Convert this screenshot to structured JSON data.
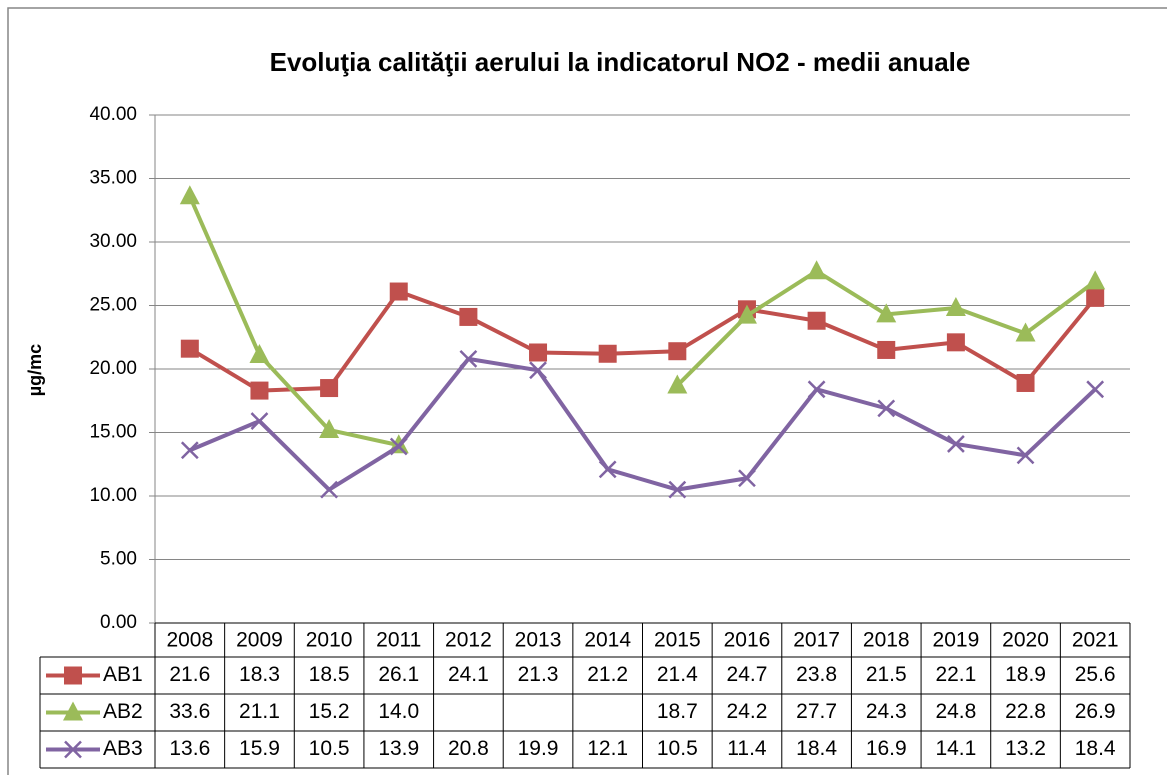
{
  "chart_data": {
    "type": "line",
    "title": "Evoluţia calităţii aerului la indicatorul NO2 - medii anuale",
    "y_label": "µg/mc",
    "categories": [
      "2008",
      "2009",
      "2010",
      "2011",
      "2012",
      "2013",
      "2014",
      "2015",
      "2016",
      "2017",
      "2018",
      "2019",
      "2020",
      "2021"
    ],
    "series": [
      {
        "name": "AB1",
        "color": "#c0504d",
        "marker": "square",
        "values": [
          21.6,
          18.3,
          18.5,
          26.1,
          24.1,
          21.3,
          21.2,
          21.4,
          24.7,
          23.8,
          21.5,
          22.1,
          18.9,
          25.6
        ],
        "value_labels": [
          "21.6",
          "18.3",
          "18.5",
          "26.1",
          "24.1",
          "21.3",
          "21.2",
          "21.4",
          "24.7",
          "23.8",
          "21.5",
          "22.1",
          "18.9",
          "25.6"
        ]
      },
      {
        "name": "AB2",
        "color": "#9bbb59",
        "marker": "triangle",
        "values": [
          33.6,
          21.1,
          15.2,
          14.0,
          null,
          null,
          null,
          18.7,
          24.2,
          27.7,
          24.3,
          24.8,
          22.8,
          26.9
        ],
        "value_labels": [
          "33.6",
          "21.1",
          "15.2",
          "14.0",
          null,
          null,
          null,
          "18.7",
          "24.2",
          "27.7",
          "24.3",
          "24.8",
          "22.8",
          "26.9"
        ]
      },
      {
        "name": "AB3",
        "color": "#8064a2",
        "marker": "x",
        "values": [
          13.6,
          15.9,
          10.5,
          13.9,
          20.8,
          19.9,
          12.1,
          10.5,
          11.4,
          18.4,
          16.9,
          14.1,
          13.2,
          18.4
        ],
        "value_labels": [
          "13.6",
          "15.9",
          "10.5",
          "13.9",
          "20.8",
          "19.9",
          "12.1",
          "10.5",
          "11.4",
          "18.4",
          "16.9",
          "14.1",
          "13.2",
          "18.4"
        ]
      }
    ],
    "ylim": [
      0,
      40
    ],
    "yticks": [
      {
        "value": 0,
        "label": "0.00"
      },
      {
        "value": 5,
        "label": "5.00"
      },
      {
        "value": 10,
        "label": "10.00"
      },
      {
        "value": 15,
        "label": "15.00"
      },
      {
        "value": 20,
        "label": "20.00"
      },
      {
        "value": 25,
        "label": "25.00"
      },
      {
        "value": 30,
        "label": "30.00"
      },
      {
        "value": 35,
        "label": "35.00"
      },
      {
        "value": 40,
        "label": "40.00"
      }
    ],
    "grid": true
  }
}
